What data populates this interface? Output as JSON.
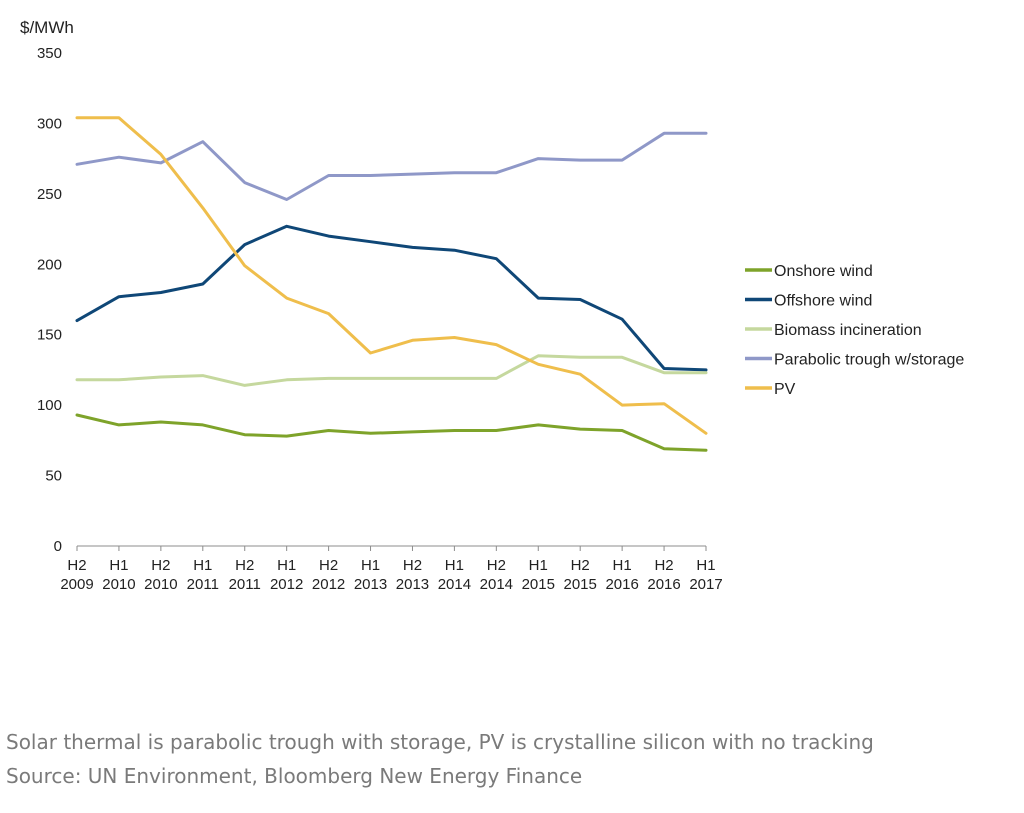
{
  "chart_data": {
    "type": "line",
    "ylabel": "$/MWh",
    "ylim": [
      0,
      350
    ],
    "yticks": [
      0,
      50,
      100,
      150,
      200,
      250,
      300,
      350
    ],
    "categories": [
      [
        "H2",
        "2009"
      ],
      [
        "H1",
        "2010"
      ],
      [
        "H2",
        "2010"
      ],
      [
        "H1",
        "2011"
      ],
      [
        "H2",
        "2011"
      ],
      [
        "H1",
        "2012"
      ],
      [
        "H2",
        "2012"
      ],
      [
        "H1",
        "2013"
      ],
      [
        "H2",
        "2013"
      ],
      [
        "H1",
        "2014"
      ],
      [
        "H2",
        "2014"
      ],
      [
        "H1",
        "2015"
      ],
      [
        "H2",
        "2015"
      ],
      [
        "H1",
        "2016"
      ],
      [
        "H2",
        "2016"
      ],
      [
        "H1",
        "2017"
      ]
    ],
    "grid": false,
    "legend_position": "right",
    "series": [
      {
        "name": "Onshore wind",
        "color": "#7ea32a",
        "values": [
          93,
          86,
          88,
          86,
          79,
          78,
          82,
          80,
          81,
          82,
          82,
          86,
          83,
          82,
          69,
          68
        ]
      },
      {
        "name": "Offshore wind",
        "color": "#0f4777",
        "values": [
          160,
          177,
          180,
          186,
          214,
          227,
          220,
          216,
          212,
          210,
          204,
          176,
          175,
          161,
          126,
          125
        ]
      },
      {
        "name": "Biomass incineration",
        "color": "#c5d89e",
        "values": [
          118,
          118,
          120,
          121,
          114,
          118,
          119,
          119,
          119,
          119,
          119,
          135,
          134,
          134,
          123,
          123
        ]
      },
      {
        "name": "Parabolic trough w/storage",
        "color": "#8f98c8",
        "values": [
          271,
          276,
          272,
          287,
          258,
          246,
          263,
          263,
          264,
          265,
          265,
          275,
          274,
          274,
          293,
          293
        ]
      },
      {
        "name": "PV",
        "color": "#efbe4c",
        "values": [
          304,
          304,
          278,
          240,
          199,
          176,
          165,
          137,
          146,
          148,
          143,
          129,
          122,
          100,
          101,
          80
        ]
      }
    ]
  },
  "captions": {
    "line1": "Solar thermal is parabolic trough with storage, PV is crystalline silicon with no tracking",
    "line2": "Source: UN Environment, Bloomberg New Energy Finance"
  }
}
